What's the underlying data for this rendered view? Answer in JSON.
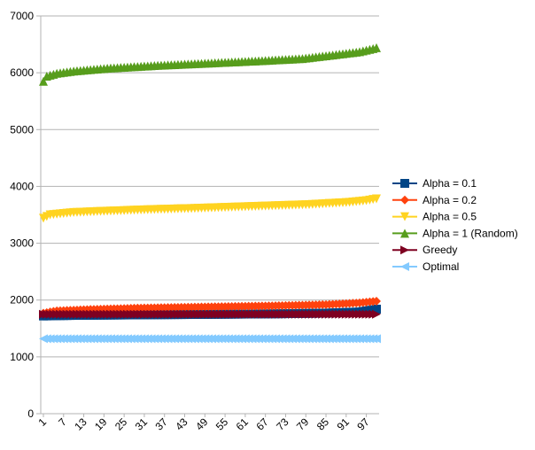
{
  "chart_data": {
    "type": "line",
    "title": "",
    "xlabel": "",
    "ylabel": "",
    "ylim": [
      0,
      7000
    ],
    "yticks": [
      0,
      1000,
      2000,
      3000,
      4000,
      5000,
      6000,
      7000
    ],
    "xlim": [
      1,
      100
    ],
    "x_tick_labels": [
      "1",
      "7",
      "13",
      "19",
      "25",
      "31",
      "37",
      "43",
      "49",
      "55",
      "61",
      "67",
      "73",
      "79",
      "85",
      "91",
      "97"
    ],
    "grid": "horizontal",
    "legend_position": "right",
    "series": [
      {
        "name": "Alpha = 0.1",
        "color": "#004586",
        "marker": "square",
        "anchors": [
          [
            1,
            1720
          ],
          [
            10,
            1730
          ],
          [
            30,
            1740
          ],
          [
            50,
            1748
          ],
          [
            70,
            1758
          ],
          [
            85,
            1770
          ],
          [
            95,
            1790
          ],
          [
            100,
            1840
          ]
        ]
      },
      {
        "name": "Alpha = 0.2",
        "color": "#ff420e",
        "marker": "diamond",
        "anchors": [
          [
            1,
            1770
          ],
          [
            5,
            1810
          ],
          [
            15,
            1835
          ],
          [
            30,
            1860
          ],
          [
            50,
            1880
          ],
          [
            70,
            1900
          ],
          [
            85,
            1920
          ],
          [
            95,
            1950
          ],
          [
            100,
            1980
          ]
        ]
      },
      {
        "name": "Alpha = 0.5",
        "color": "#ffd320",
        "marker": "triangle-down",
        "anchors": [
          [
            1,
            3440
          ],
          [
            3,
            3500
          ],
          [
            10,
            3540
          ],
          [
            20,
            3565
          ],
          [
            35,
            3595
          ],
          [
            50,
            3620
          ],
          [
            65,
            3650
          ],
          [
            80,
            3680
          ],
          [
            92,
            3720
          ],
          [
            97,
            3750
          ],
          [
            100,
            3780
          ]
        ]
      },
      {
        "name": "Alpha = 1 (Random)",
        "color": "#579d1c",
        "marker": "triangle-up",
        "anchors": [
          [
            1,
            5850
          ],
          [
            2,
            5940
          ],
          [
            5,
            5990
          ],
          [
            10,
            6030
          ],
          [
            20,
            6080
          ],
          [
            35,
            6130
          ],
          [
            50,
            6170
          ],
          [
            65,
            6210
          ],
          [
            78,
            6250
          ],
          [
            88,
            6320
          ],
          [
            95,
            6370
          ],
          [
            100,
            6440
          ]
        ]
      },
      {
        "name": "Greedy",
        "color": "#7e0021",
        "marker": "triangle-right",
        "anchors": [
          [
            1,
            1750
          ],
          [
            100,
            1750
          ]
        ]
      },
      {
        "name": "Optimal",
        "color": "#83caff",
        "marker": "triangle-left",
        "anchors": [
          [
            1,
            1320
          ],
          [
            100,
            1320
          ]
        ]
      }
    ]
  }
}
